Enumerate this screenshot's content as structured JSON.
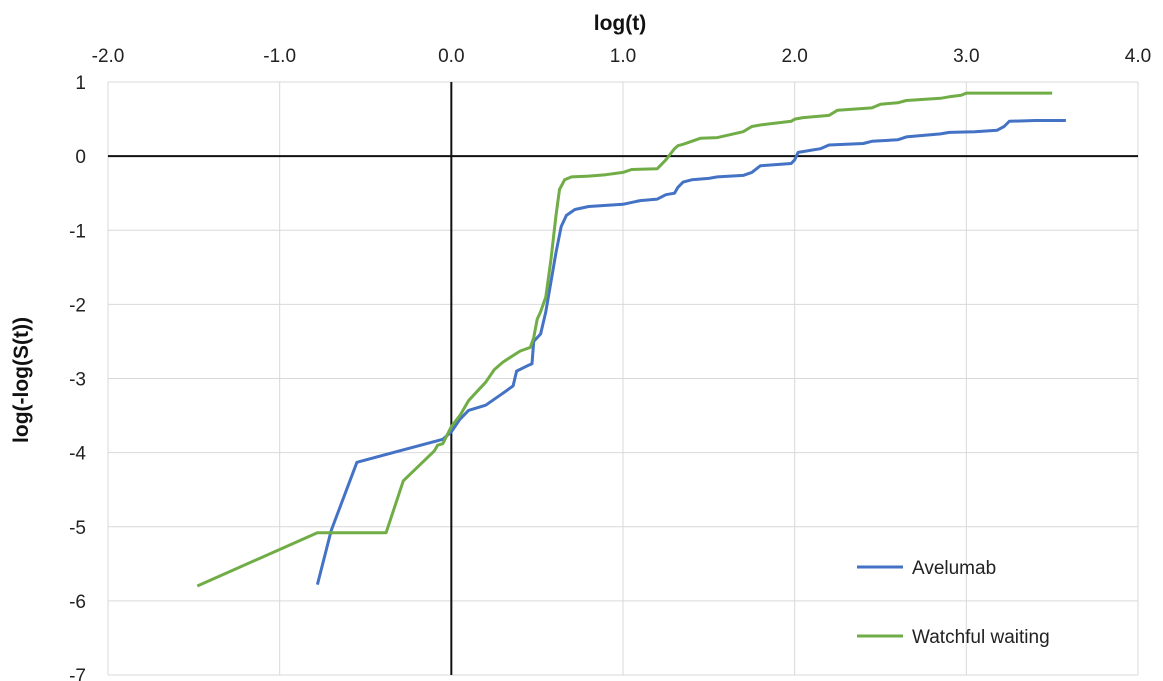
{
  "chart_data": {
    "type": "line",
    "title": "",
    "xlabel": "log(t)",
    "ylabel": "log(-log(S(t))",
    "xlim": [
      -2.0,
      4.0
    ],
    "ylim": [
      -7,
      1
    ],
    "x_tick_labels": [
      "-2.0",
      "-1.0",
      "0.0",
      "1.0",
      "2.0",
      "3.0",
      "4.0"
    ],
    "y_tick_labels": [
      "1",
      "0",
      "-1",
      "-2",
      "-3",
      "-4",
      "-5",
      "-6",
      "-7"
    ],
    "x_axis_position": "top",
    "grid": true,
    "legend_position": "bottom-right",
    "series": [
      {
        "name": "Avelumab",
        "color": "#4472C4",
        "x": [
          -0.78,
          -0.7,
          -0.55,
          -0.05,
          0.0,
          0.05,
          0.1,
          0.2,
          0.3,
          0.36,
          0.38,
          0.45,
          0.47,
          0.48,
          0.52,
          0.55,
          0.58,
          0.61,
          0.64,
          0.67,
          0.72,
          0.8,
          1.0,
          1.1,
          1.2,
          1.25,
          1.3,
          1.32,
          1.35,
          1.4,
          1.5,
          1.55,
          1.7,
          1.75,
          1.8,
          1.98,
          2.0,
          2.02,
          2.15,
          2.2,
          2.4,
          2.45,
          2.6,
          2.65,
          2.85,
          2.9,
          3.05,
          3.18,
          3.22,
          3.25,
          3.4,
          3.58
        ],
        "y": [
          -5.78,
          -5.05,
          -4.13,
          -3.82,
          -3.72,
          -3.55,
          -3.43,
          -3.36,
          -3.2,
          -3.1,
          -2.9,
          -2.82,
          -2.8,
          -2.5,
          -2.4,
          -2.1,
          -1.7,
          -1.3,
          -0.95,
          -0.8,
          -0.72,
          -0.68,
          -0.65,
          -0.6,
          -0.58,
          -0.52,
          -0.5,
          -0.42,
          -0.35,
          -0.32,
          -0.3,
          -0.28,
          -0.26,
          -0.22,
          -0.13,
          -0.1,
          -0.05,
          0.05,
          0.1,
          0.15,
          0.17,
          0.2,
          0.22,
          0.26,
          0.3,
          0.32,
          0.33,
          0.35,
          0.4,
          0.47,
          0.48,
          0.48
        ]
      },
      {
        "name": "Watchful waiting",
        "color": "#70AD47",
        "x": [
          -1.48,
          -0.78,
          -0.38,
          -0.28,
          -0.1,
          -0.08,
          -0.05,
          0.0,
          0.05,
          0.1,
          0.2,
          0.25,
          0.3,
          0.4,
          0.46,
          0.48,
          0.5,
          0.52,
          0.55,
          0.58,
          0.61,
          0.63,
          0.66,
          0.7,
          0.8,
          0.9,
          1.0,
          1.05,
          1.2,
          1.25,
          1.3,
          1.32,
          1.35,
          1.4,
          1.45,
          1.55,
          1.7,
          1.75,
          1.8,
          1.98,
          2.0,
          2.05,
          2.2,
          2.25,
          2.45,
          2.5,
          2.6,
          2.65,
          2.85,
          2.9,
          2.97,
          3.0,
          3.5
        ],
        "y": [
          -5.8,
          -5.08,
          -5.08,
          -4.38,
          -3.98,
          -3.9,
          -3.88,
          -3.65,
          -3.5,
          -3.3,
          -3.05,
          -2.88,
          -2.78,
          -2.63,
          -2.58,
          -2.45,
          -2.2,
          -2.1,
          -1.9,
          -1.4,
          -0.8,
          -0.45,
          -0.32,
          -0.28,
          -0.27,
          -0.25,
          -0.22,
          -0.18,
          -0.17,
          -0.05,
          0.1,
          0.14,
          0.16,
          0.2,
          0.24,
          0.25,
          0.33,
          0.4,
          0.42,
          0.47,
          0.5,
          0.52,
          0.55,
          0.62,
          0.65,
          0.7,
          0.72,
          0.75,
          0.78,
          0.8,
          0.82,
          0.85,
          0.85
        ]
      }
    ]
  }
}
